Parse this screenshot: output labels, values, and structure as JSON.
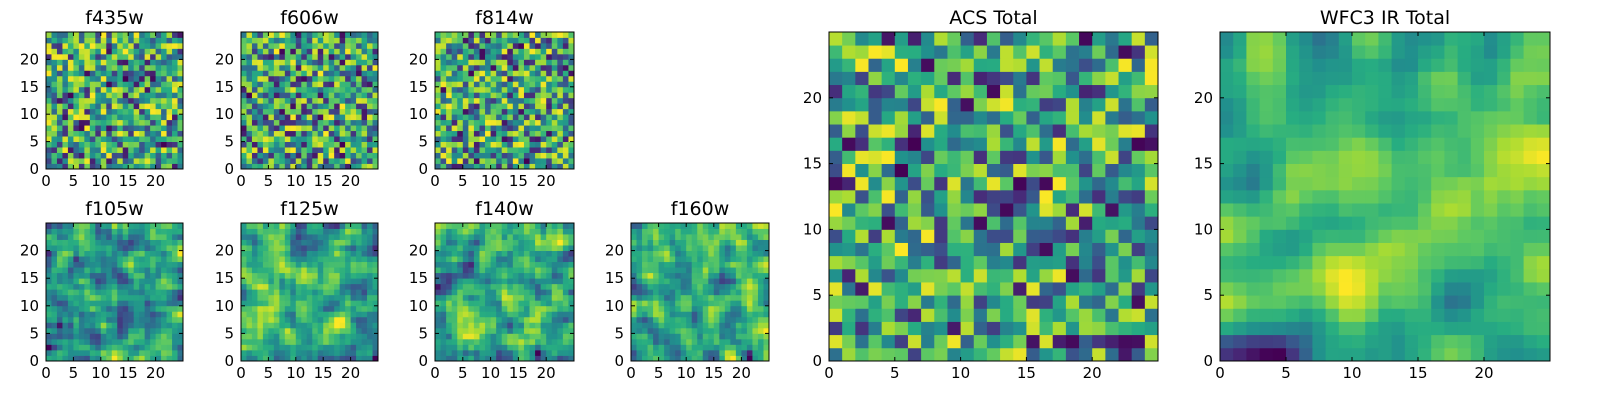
{
  "figure": {
    "colormap": "viridis",
    "grid": false,
    "legend": "none"
  },
  "chart_data": [
    {
      "type": "heatmap",
      "title": "f435w",
      "x_ticks": [
        0,
        5,
        10,
        15,
        20
      ],
      "y_ticks": [
        0,
        5,
        10,
        15,
        20
      ],
      "xlim": [
        0,
        25
      ],
      "ylim": [
        0,
        25
      ],
      "grid_size": 25,
      "seed": 11,
      "smoothing": 0
    },
    {
      "type": "heatmap",
      "title": "f606w",
      "x_ticks": [
        0,
        5,
        10,
        15,
        20
      ],
      "y_ticks": [
        0,
        5,
        10,
        15,
        20
      ],
      "xlim": [
        0,
        25
      ],
      "ylim": [
        0,
        25
      ],
      "grid_size": 25,
      "seed": 23,
      "smoothing": 0
    },
    {
      "type": "heatmap",
      "title": "f814w",
      "x_ticks": [
        0,
        5,
        10,
        15,
        20
      ],
      "y_ticks": [
        0,
        5,
        10,
        15,
        20
      ],
      "xlim": [
        0,
        25
      ],
      "ylim": [
        0,
        25
      ],
      "grid_size": 25,
      "seed": 37,
      "smoothing": 0
    },
    {
      "type": "heatmap",
      "title": "f105w",
      "x_ticks": [
        0,
        5,
        10,
        15,
        20
      ],
      "y_ticks": [
        0,
        5,
        10,
        15,
        20
      ],
      "xlim": [
        0,
        25
      ],
      "ylim": [
        0,
        25
      ],
      "grid_size": 25,
      "seed": 41,
      "smoothing": 1
    },
    {
      "type": "heatmap",
      "title": "f125w",
      "x_ticks": [
        0,
        5,
        10,
        15,
        20
      ],
      "y_ticks": [
        0,
        5,
        10,
        15,
        20
      ],
      "xlim": [
        0,
        25
      ],
      "ylim": [
        0,
        25
      ],
      "grid_size": 25,
      "seed": 53,
      "smoothing": 1
    },
    {
      "type": "heatmap",
      "title": "f140w",
      "x_ticks": [
        0,
        5,
        10,
        15,
        20
      ],
      "y_ticks": [
        0,
        5,
        10,
        15,
        20
      ],
      "xlim": [
        0,
        25
      ],
      "ylim": [
        0,
        25
      ],
      "grid_size": 25,
      "seed": 67,
      "smoothing": 1
    },
    {
      "type": "heatmap",
      "title": "f160w",
      "x_ticks": [
        0,
        5,
        10,
        15,
        20
      ],
      "y_ticks": [
        0,
        5,
        10,
        15,
        20
      ],
      "xlim": [
        0,
        25
      ],
      "ylim": [
        0,
        25
      ],
      "grid_size": 25,
      "seed": 79,
      "smoothing": 1
    },
    {
      "type": "heatmap",
      "title": "ACS Total",
      "x_ticks": [
        0,
        5,
        10,
        15,
        20
      ],
      "y_ticks": [
        0,
        5,
        10,
        15,
        20
      ],
      "xlim": [
        0,
        25
      ],
      "ylim": [
        0,
        25
      ],
      "grid_size": 25,
      "seed": 83,
      "smoothing": 0
    },
    {
      "type": "heatmap",
      "title": "WFC3 IR Total",
      "x_ticks": [
        0,
        5,
        10,
        15,
        20
      ],
      "y_ticks": [
        0,
        5,
        10,
        15,
        20
      ],
      "xlim": [
        0,
        25
      ],
      "ylim": [
        0,
        25
      ],
      "grid_size": 25,
      "seed": 97,
      "smoothing": 2
    }
  ]
}
